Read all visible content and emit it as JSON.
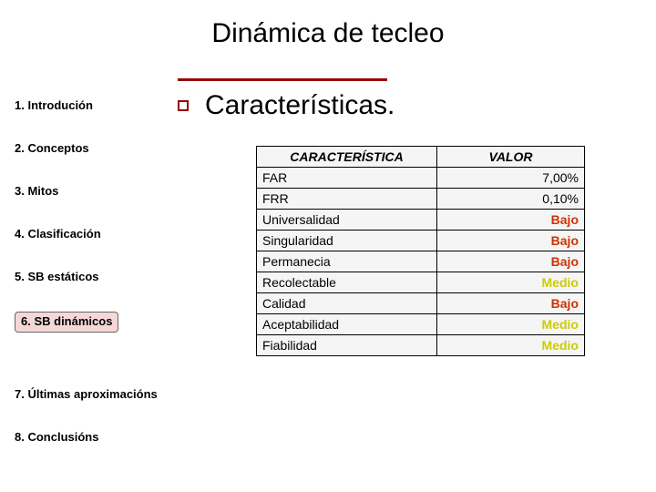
{
  "title": "Dinámica de tecleo",
  "nav": {
    "items": [
      {
        "label": "1. Introdución",
        "active": false
      },
      {
        "label": "2. Conceptos",
        "active": false
      },
      {
        "label": "3. Mitos",
        "active": false
      },
      {
        "label": "4. Clasificación",
        "active": false
      },
      {
        "label": "5. SB estáticos",
        "active": false
      },
      {
        "label": "6. SB dinámicos",
        "active": true
      },
      {
        "label": "7. Últimas aproximacións",
        "active": false
      },
      {
        "label": "8. Conclusións",
        "active": false
      }
    ]
  },
  "main": {
    "heading": "Características.",
    "divider_color": "#990000",
    "bullet_color": "#990000"
  },
  "table": {
    "headers": [
      "CARACTERÍSTICA",
      "VALOR"
    ],
    "rows": [
      {
        "char": "FAR",
        "val": "7,00%",
        "val_class": ""
      },
      {
        "char": "FRR",
        "val": "0,10%",
        "val_class": ""
      },
      {
        "char": "Universalidad",
        "val": "Bajo",
        "val_class": "bajo"
      },
      {
        "char": "Singularidad",
        "val": "Bajo",
        "val_class": "bajo"
      },
      {
        "char": "Permanecia",
        "val": "Bajo",
        "val_class": "bajo"
      },
      {
        "char": "Recolectable",
        "val": "Medio",
        "val_class": "medio"
      },
      {
        "char": "Calidad",
        "val": "Bajo",
        "val_class": "bajo"
      },
      {
        "char": "Aceptabilidad",
        "val": "Medio",
        "val_class": "medio"
      },
      {
        "char": "Fiabilidad",
        "val": "Medio",
        "val_class": "medio"
      }
    ],
    "colors": {
      "bajo": "#cc3300",
      "medio": "#cccc00",
      "border": "#000000",
      "background": "#f5f5f5"
    }
  }
}
